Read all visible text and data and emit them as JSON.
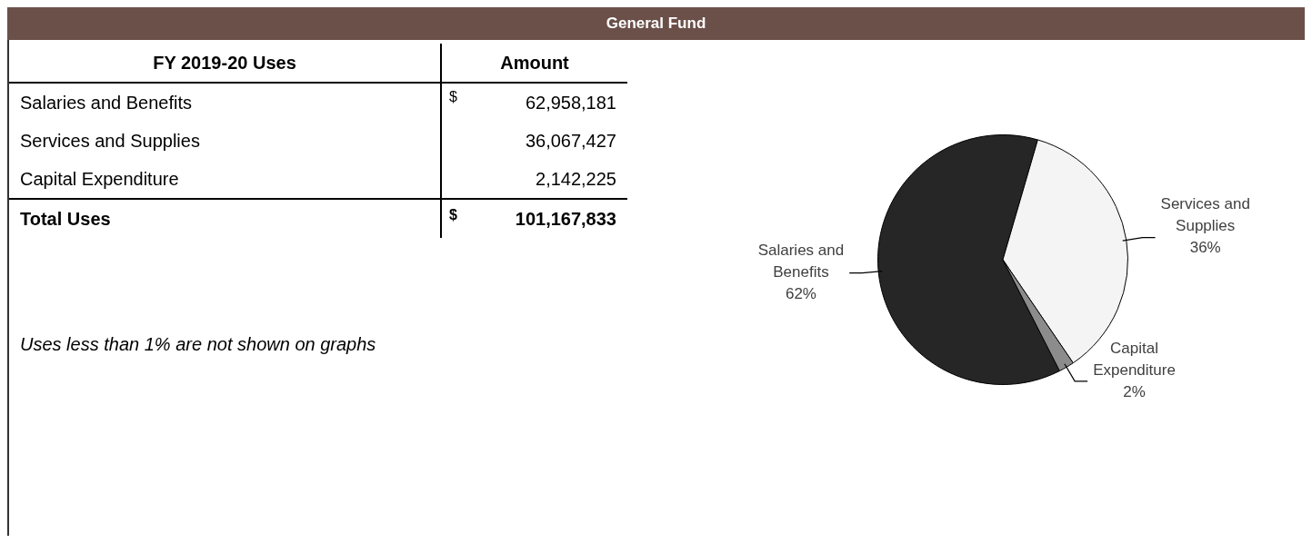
{
  "chart_data": {
    "type": "pie",
    "title": "General Fund",
    "categories": [
      "Salaries and Benefits",
      "Services and Supplies",
      "Capital Expenditure"
    ],
    "values": [
      62,
      36,
      2
    ],
    "colors": [
      "#262626",
      "#f4f4f4",
      "#8c8c8c"
    ],
    "value_labels": [
      "62%",
      "36%",
      "2%"
    ],
    "totals": [
      "101,167,833"
    ],
    "legend_title": "FY 2019-20 Uses",
    "annotations": [
      "Amount",
      "Total Uses",
      "$",
      "Uses less than 1% are not shown on graphs",
      "62,958,181",
      "36,067,427",
      "2,142,225"
    ],
    "legend": false
  }
}
